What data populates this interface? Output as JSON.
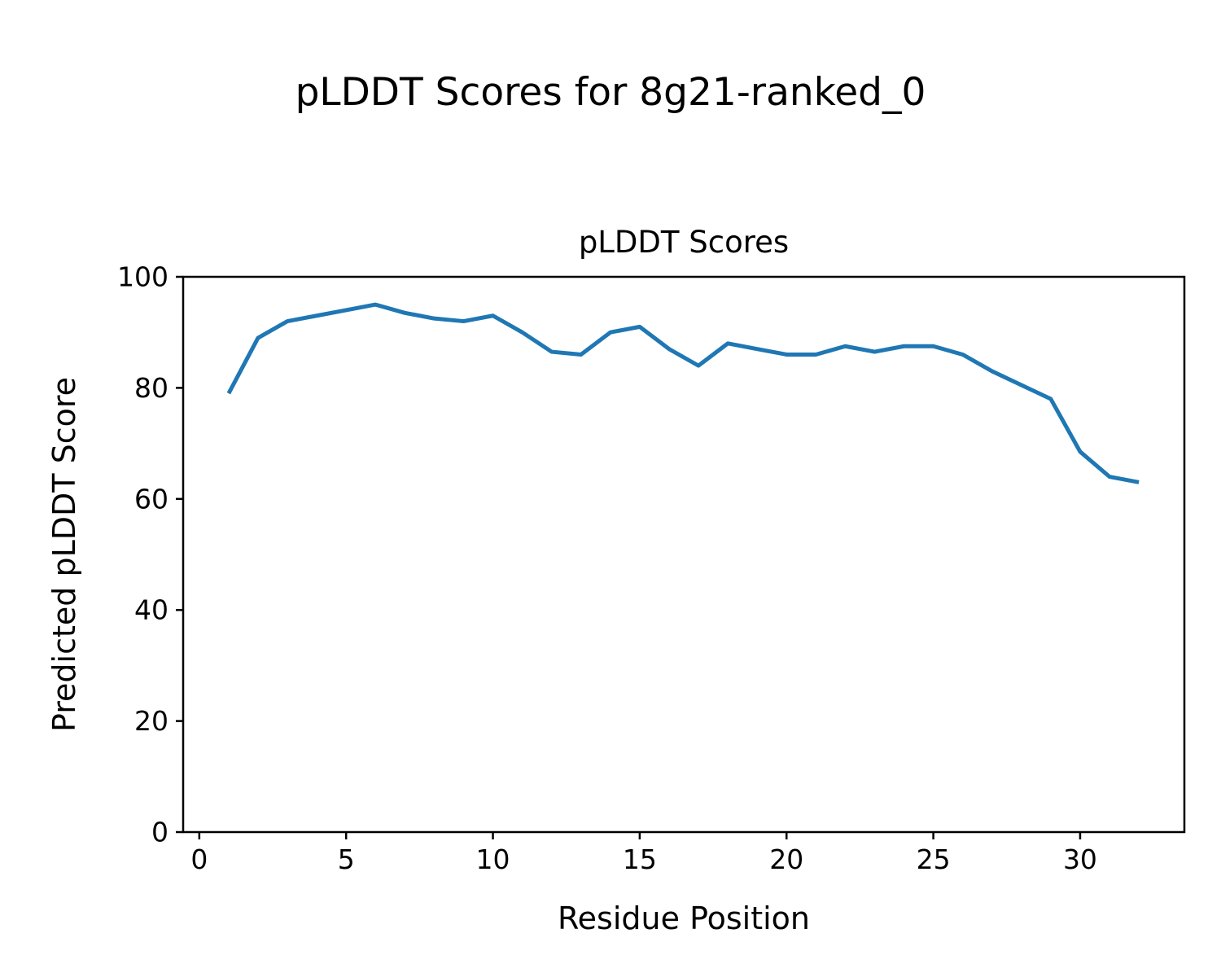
{
  "figure_title": "pLDDT Scores for 8g21-ranked_0",
  "chart_data": {
    "type": "line",
    "title": "pLDDT Scores",
    "xlabel": "Residue Position",
    "ylabel": "Predicted pLDDT Score",
    "x": [
      1,
      2,
      3,
      4,
      5,
      6,
      7,
      8,
      9,
      10,
      11,
      12,
      13,
      14,
      15,
      16,
      17,
      18,
      19,
      20,
      21,
      22,
      23,
      24,
      25,
      26,
      27,
      28,
      29,
      30,
      31,
      32
    ],
    "y": [
      79,
      89,
      92,
      93,
      94,
      95,
      93.5,
      92.5,
      92,
      93,
      90,
      86.5,
      86,
      90,
      91,
      87,
      84,
      88,
      87,
      86,
      86,
      87.5,
      86.5,
      87.5,
      87.5,
      86,
      83,
      80.5,
      78,
      68.5,
      64,
      63
    ],
    "xlim": [
      -0.55,
      33.55
    ],
    "ylim": [
      0,
      100
    ],
    "xticks": [
      0,
      5,
      10,
      15,
      20,
      25,
      30
    ],
    "yticks": [
      0,
      20,
      40,
      60,
      80,
      100
    ],
    "line_color": "#1f77b4",
    "axis_color": "#000000",
    "grid": false,
    "legend": null
  }
}
